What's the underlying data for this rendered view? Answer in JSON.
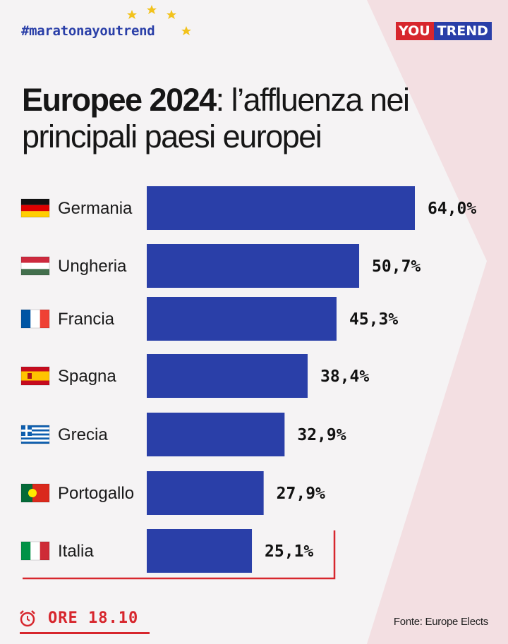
{
  "header": {
    "hashtag": "#maratonayoutrend",
    "logo_part1": "YOU",
    "logo_part2": "TREND"
  },
  "title": {
    "strong": "Europee 2024",
    "rest": ": l’affluenza nei principali paesi europei"
  },
  "chart_data": {
    "type": "bar",
    "orientation": "horizontal",
    "categories": [
      "Germania",
      "Ungheria",
      "Francia",
      "Spagna",
      "Grecia",
      "Portogallo",
      "Italia"
    ],
    "values": [
      64.0,
      50.7,
      45.3,
      38.4,
      32.9,
      27.9,
      25.1
    ],
    "value_labels": [
      "64,0%",
      "50,7%",
      "45,3%",
      "38,4%",
      "32,9%",
      "27,9%",
      "25,1%"
    ],
    "flag_icons": [
      "germany-flag-icon",
      "hungary-flag-icon",
      "france-flag-icon",
      "spain-flag-icon",
      "greece-flag-icon",
      "portugal-flag-icon",
      "italy-flag-icon"
    ],
    "highlight": "Italia",
    "bar_color": "#2a3fa8",
    "highlight_color": "#d7262d"
  },
  "footer": {
    "time": "ORE 18.10",
    "source": "Fonte: Europe Elects"
  },
  "colors": {
    "accent_blue": "#2a3fa8",
    "accent_red": "#d7262d",
    "star_yellow": "#f2c21b"
  }
}
